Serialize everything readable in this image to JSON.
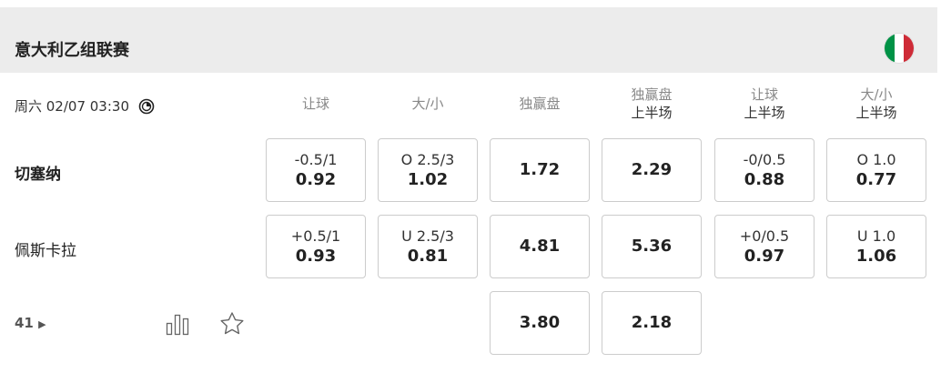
{
  "league": {
    "title": "意大利乙组联赛",
    "flag_colors": [
      "#009246",
      "#ffffff",
      "#ce2b37"
    ]
  },
  "match": {
    "datetime": "周六 02/07 03:30",
    "home": "切塞纳",
    "away": "佩斯卡拉",
    "market_count": "41"
  },
  "columns": [
    {
      "label": "让球",
      "sub": ""
    },
    {
      "label": "大/小",
      "sub": ""
    },
    {
      "label": "独赢盘",
      "sub": ""
    },
    {
      "label": "独赢盘",
      "sub": "上半场"
    },
    {
      "label": "让球",
      "sub": "上半场"
    },
    {
      "label": "大/小",
      "sub": "上半场"
    }
  ],
  "rows": [
    [
      {
        "h": "-0.5/1",
        "o": "0.92"
      },
      {
        "h": "O 2.5/3",
        "o": "1.02"
      },
      {
        "h": "",
        "o": "1.72"
      },
      {
        "h": "",
        "o": "2.29"
      },
      {
        "h": "-0/0.5",
        "o": "0.88"
      },
      {
        "h": "O 1.0",
        "o": "0.77"
      }
    ],
    [
      {
        "h": "+0.5/1",
        "o": "0.93"
      },
      {
        "h": "U 2.5/3",
        "o": "0.81"
      },
      {
        "h": "",
        "o": "4.81"
      },
      {
        "h": "",
        "o": "5.36"
      },
      {
        "h": "+0/0.5",
        "o": "0.97"
      },
      {
        "h": "U 1.0",
        "o": "1.06"
      }
    ],
    [
      null,
      null,
      {
        "h": "",
        "o": "3.80"
      },
      {
        "h": "",
        "o": "2.18"
      },
      null,
      null
    ]
  ]
}
